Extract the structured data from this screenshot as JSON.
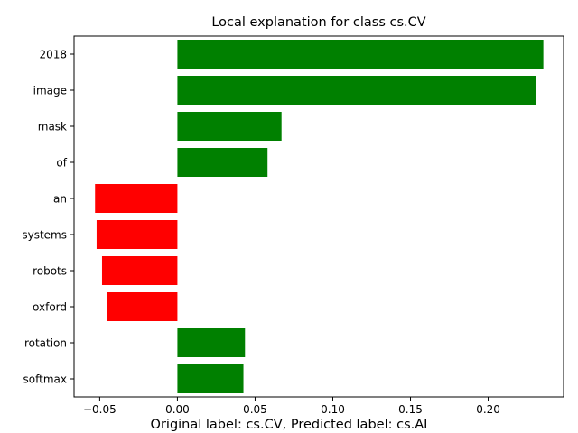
{
  "chart_data": {
    "type": "bar",
    "orientation": "horizontal",
    "title": "Local explanation for class cs.CV",
    "caption": "Original label: cs.CV, Predicted label: cs.AI",
    "xlabel": "",
    "ylabel": "",
    "categories": [
      "2018",
      "image",
      "mask",
      "of",
      "an",
      "systems",
      "robots",
      "oxford",
      "rotation",
      "softmax"
    ],
    "values": [
      0.2355,
      0.2305,
      0.067,
      0.058,
      -0.053,
      -0.052,
      -0.0485,
      -0.045,
      0.0435,
      0.0425
    ],
    "xlim": [
      -0.0665,
      0.2485
    ],
    "xticks": [
      -0.05,
      0.0,
      0.05,
      0.1,
      0.15,
      0.2
    ],
    "xtick_labels": [
      "−0.05",
      "0.00",
      "0.05",
      "0.10",
      "0.15",
      "0.20"
    ],
    "grid": false,
    "colors": {
      "positive": "#008000",
      "negative": "#ff0000",
      "axis": "#000000"
    }
  }
}
